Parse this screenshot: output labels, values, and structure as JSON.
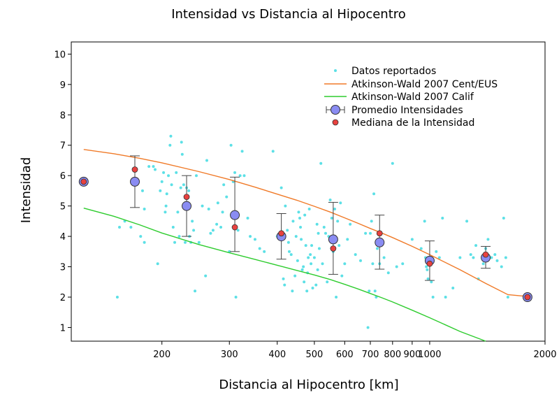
{
  "chart_data": {
    "type": "scatter",
    "title": "Intensidad vs Distancia al Hipocentro",
    "xlabel": "Distancia al Hipocentro [km]",
    "ylabel": "Intensidad",
    "xscale": "log",
    "xlim": [
      116,
      2000
    ],
    "ylim": [
      0.55,
      10.4
    ],
    "grid": false,
    "legend_position": "top-right",
    "xticks": [
      200,
      300,
      400,
      500,
      600,
      700,
      800,
      900,
      1000,
      2000
    ],
    "xtick_labels": [
      "200",
      "300",
      "400",
      "500",
      "600",
      "700",
      "800",
      "900",
      "1000",
      "2000"
    ],
    "yticks": [
      1,
      2,
      3,
      4,
      5,
      6,
      7,
      8,
      9,
      10
    ],
    "ytick_labels": [
      "1",
      "2",
      "3",
      "4",
      "5",
      "6",
      "7",
      "8",
      "9",
      "10"
    ],
    "series": [
      {
        "name": "Datos reportados",
        "kind": "scatter",
        "color": "#5ce0e6",
        "points": [
          [
            153,
            2.0
          ],
          [
            155,
            4.3
          ],
          [
            160,
            4.5
          ],
          [
            166,
            4.3
          ],
          [
            172,
            5.8
          ],
          [
            176,
            4.0
          ],
          [
            178,
            5.5
          ],
          [
            180,
            3.8
          ],
          [
            180,
            4.9
          ],
          [
            185,
            6.3
          ],
          [
            190,
            6.3
          ],
          [
            192,
            6.2
          ],
          [
            195,
            3.1
          ],
          [
            198,
            5.5
          ],
          [
            200,
            5.8
          ],
          [
            202,
            6.1
          ],
          [
            204,
            4.8
          ],
          [
            205,
            5.0
          ],
          [
            206,
            5.4
          ],
          [
            208,
            6.0
          ],
          [
            210,
            7.0
          ],
          [
            211,
            7.3
          ],
          [
            212,
            5.7
          ],
          [
            214,
            4.3
          ],
          [
            216,
            3.8
          ],
          [
            218,
            6.1
          ],
          [
            220,
            4.8
          ],
          [
            222,
            4.0
          ],
          [
            224,
            5.6
          ],
          [
            225,
            7.1
          ],
          [
            226,
            6.7
          ],
          [
            228,
            5.7
          ],
          [
            230,
            3.8
          ],
          [
            232,
            5.6
          ],
          [
            235,
            5.5
          ],
          [
            236,
            4.0
          ],
          [
            238,
            3.8
          ],
          [
            240,
            4.5
          ],
          [
            242,
            4.2
          ],
          [
            244,
            2.2
          ],
          [
            246,
            6.0
          ],
          [
            250,
            3.8
          ],
          [
            255,
            5.0
          ],
          [
            260,
            2.7
          ],
          [
            262,
            6.5
          ],
          [
            265,
            4.9
          ],
          [
            268,
            4.1
          ],
          [
            272,
            4.2
          ],
          [
            278,
            4.4
          ],
          [
            280,
            5.1
          ],
          [
            285,
            4.3
          ],
          [
            288,
            4.8
          ],
          [
            290,
            5.7
          ],
          [
            295,
            5.3
          ],
          [
            300,
            3.5
          ],
          [
            303,
            7.0
          ],
          [
            307,
            5.8
          ],
          [
            310,
            6.1
          ],
          [
            312,
            2.0
          ],
          [
            316,
            4.2
          ],
          [
            320,
            6.0
          ],
          [
            324,
            6.8
          ],
          [
            328,
            6.0
          ],
          [
            335,
            4.6
          ],
          [
            340,
            4.0
          ],
          [
            350,
            3.9
          ],
          [
            360,
            3.6
          ],
          [
            370,
            3.5
          ],
          [
            390,
            6.8
          ],
          [
            400,
            4.0
          ],
          [
            410,
            5.6
          ],
          [
            415,
            2.6
          ],
          [
            418,
            2.4
          ],
          [
            420,
            5.0
          ],
          [
            425,
            4.2
          ],
          [
            428,
            3.8
          ],
          [
            430,
            3.5
          ],
          [
            435,
            3.4
          ],
          [
            438,
            2.2
          ],
          [
            440,
            4.5
          ],
          [
            445,
            2.7
          ],
          [
            448,
            4.0
          ],
          [
            452,
            3.2
          ],
          [
            455,
            4.8
          ],
          [
            458,
            4.6
          ],
          [
            460,
            4.3
          ],
          [
            462,
            3.9
          ],
          [
            465,
            2.9
          ],
          [
            468,
            3.0
          ],
          [
            470,
            2.5
          ],
          [
            472,
            4.7
          ],
          [
            475,
            3.7
          ],
          [
            478,
            2.2
          ],
          [
            480,
            2.8
          ],
          [
            482,
            3.3
          ],
          [
            485,
            4.9
          ],
          [
            488,
            3.4
          ],
          [
            490,
            3.1
          ],
          [
            492,
            3.7
          ],
          [
            495,
            2.3
          ],
          [
            500,
            3.3
          ],
          [
            505,
            2.4
          ],
          [
            508,
            4.4
          ],
          [
            510,
            2.9
          ],
          [
            512,
            4.1
          ],
          [
            515,
            3.6
          ],
          [
            520,
            6.4
          ],
          [
            525,
            3.1
          ],
          [
            530,
            4.3
          ],
          [
            535,
            4.1
          ],
          [
            540,
            2.5
          ],
          [
            545,
            4.0
          ],
          [
            550,
            5.2
          ],
          [
            555,
            4.6
          ],
          [
            560,
            3.5
          ],
          [
            565,
            4.9
          ],
          [
            570,
            2.0
          ],
          [
            575,
            4.5
          ],
          [
            580,
            3.7
          ],
          [
            585,
            5.1
          ],
          [
            590,
            2.7
          ],
          [
            600,
            3.1
          ],
          [
            610,
            3.9
          ],
          [
            620,
            4.4
          ],
          [
            640,
            3.4
          ],
          [
            660,
            3.2
          ],
          [
            680,
            4.1
          ],
          [
            690,
            1.0
          ],
          [
            695,
            2.2
          ],
          [
            700,
            4.1
          ],
          [
            705,
            4.5
          ],
          [
            710,
            3.1
          ],
          [
            715,
            5.4
          ],
          [
            720,
            2.2
          ],
          [
            725,
            2.0
          ],
          [
            730,
            3.6
          ],
          [
            735,
            3.8
          ],
          [
            740,
            3.1
          ],
          [
            760,
            3.3
          ],
          [
            780,
            2.8
          ],
          [
            800,
            6.4
          ],
          [
            820,
            3.0
          ],
          [
            850,
            3.1
          ],
          [
            900,
            3.9
          ],
          [
            950,
            3.6
          ],
          [
            970,
            4.5
          ],
          [
            975,
            3.3
          ],
          [
            980,
            3.0
          ],
          [
            985,
            2.9
          ],
          [
            990,
            2.6
          ],
          [
            1000,
            3.1
          ],
          [
            1010,
            2.5
          ],
          [
            1020,
            2.0
          ],
          [
            1040,
            3.5
          ],
          [
            1060,
            3.3
          ],
          [
            1080,
            4.6
          ],
          [
            1100,
            2.0
          ],
          [
            1150,
            2.3
          ],
          [
            1200,
            3.3
          ],
          [
            1250,
            4.5
          ],
          [
            1280,
            3.4
          ],
          [
            1300,
            3.3
          ],
          [
            1320,
            3.7
          ],
          [
            1340,
            2.6
          ],
          [
            1380,
            3.1
          ],
          [
            1400,
            3.6
          ],
          [
            1420,
            3.9
          ],
          [
            1450,
            3.3
          ],
          [
            1480,
            3.4
          ],
          [
            1500,
            3.2
          ],
          [
            1540,
            3.0
          ],
          [
            1560,
            4.6
          ],
          [
            1580,
            3.3
          ],
          [
            1600,
            2.0
          ]
        ]
      },
      {
        "name": "Atkinson-Wald 2007 Cent/EUS",
        "kind": "line",
        "color": "#f07a28",
        "x": [
          125,
          150,
          175,
          200,
          250,
          300,
          350,
          400,
          450,
          500,
          550,
          600,
          650,
          700,
          750,
          800,
          900,
          1000,
          1200,
          1400,
          1600,
          1800
        ],
        "y": [
          6.86,
          6.72,
          6.57,
          6.42,
          6.13,
          5.87,
          5.62,
          5.39,
          5.19,
          4.99,
          4.8,
          4.61,
          4.43,
          4.26,
          4.11,
          3.96,
          3.67,
          3.4,
          2.9,
          2.45,
          2.08,
          2.02
        ]
      },
      {
        "name": "Atkinson-Wald 2007 Calif",
        "kind": "line",
        "color": "#2ecc2e",
        "x": [
          125,
          150,
          175,
          200,
          250,
          300,
          350,
          400,
          450,
          500,
          550,
          600,
          650,
          700,
          750,
          800,
          900,
          1000,
          1200,
          1400
        ],
        "y": [
          4.93,
          4.66,
          4.38,
          4.11,
          3.73,
          3.46,
          3.24,
          3.05,
          2.88,
          2.73,
          2.58,
          2.42,
          2.27,
          2.12,
          1.98,
          1.84,
          1.57,
          1.32,
          0.87,
          0.55
        ]
      },
      {
        "name": "Promedio Intensidades",
        "kind": "errorbar",
        "color": "#8a8cf2",
        "x": [
          125,
          170,
          232,
          310,
          410,
          560,
          740,
          1000,
          1400,
          1800
        ],
        "y": [
          5.8,
          5.8,
          5.0,
          4.7,
          4.0,
          3.9,
          3.8,
          3.2,
          3.3,
          2.0
        ],
        "ylow": [
          null,
          4.95,
          4.0,
          3.5,
          3.25,
          2.75,
          2.92,
          2.55,
          2.95,
          null
        ],
        "yhigh": [
          null,
          6.65,
          6.0,
          5.95,
          4.75,
          5.12,
          4.7,
          3.85,
          3.67,
          null
        ]
      },
      {
        "name": "Mediana de la Intensidad",
        "kind": "scatter",
        "color": "#e8413f",
        "x": [
          125,
          170,
          232,
          310,
          410,
          560,
          740,
          1000,
          1400,
          1800
        ],
        "y": [
          5.8,
          6.2,
          5.3,
          4.3,
          4.1,
          3.6,
          4.1,
          3.1,
          3.4,
          2.0
        ]
      }
    ]
  }
}
